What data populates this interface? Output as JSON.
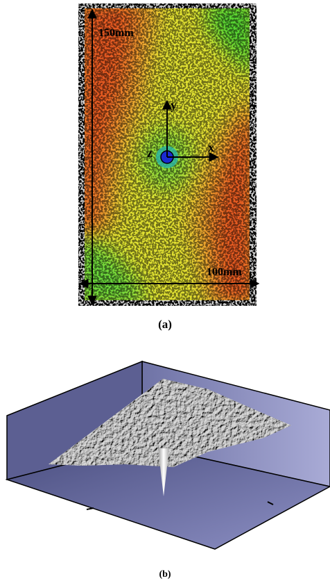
{
  "panel_a": {
    "height_label": "150mm",
    "width_label": "100mm",
    "y_axis": "y",
    "x_axis": "x",
    "z_axis": "z",
    "caption": "(a)"
  },
  "panel_b": {
    "caption": "(b)"
  }
}
